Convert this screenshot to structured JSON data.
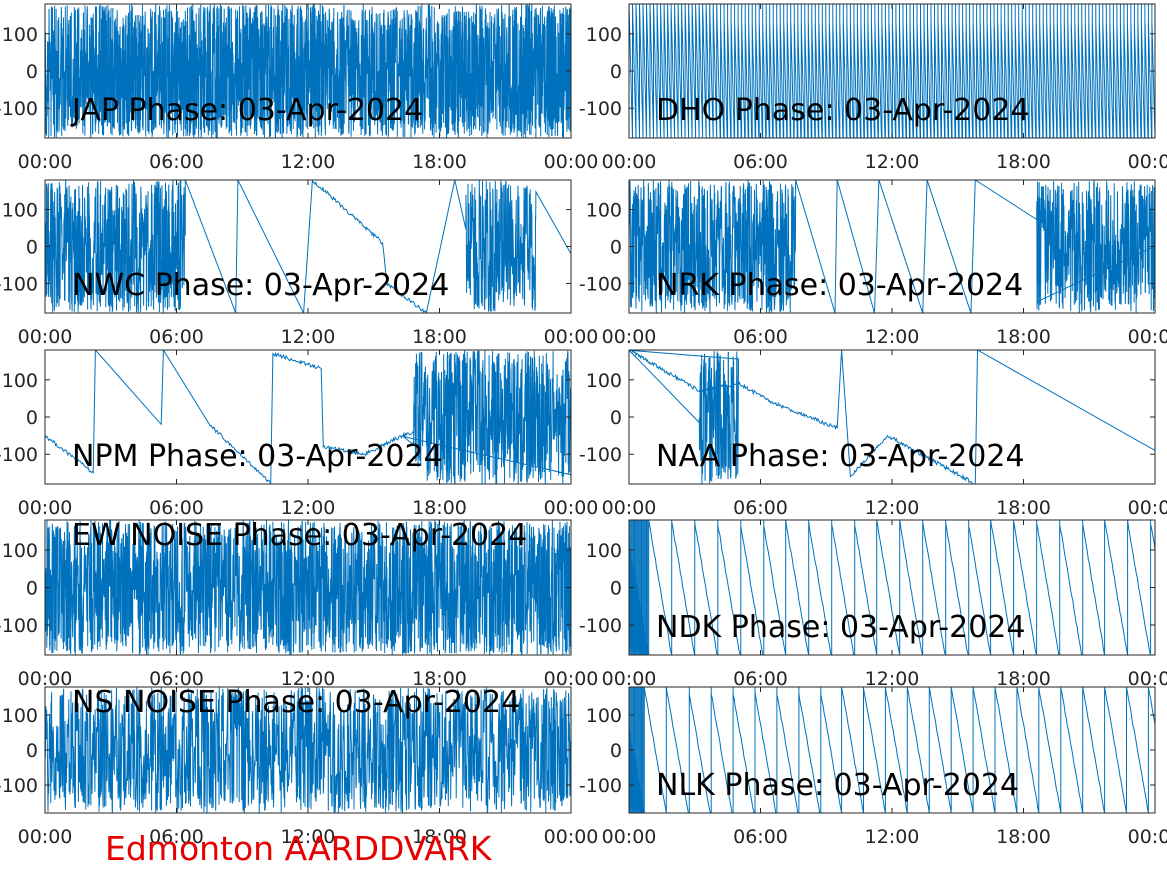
{
  "figure": {
    "footer": "Edmonton AARDDVARK",
    "footer_color": "#e60000",
    "line_color": "#0072bd"
  },
  "chart_data": [
    {
      "type": "line",
      "title": "JAP Phase: 03-Apr-2024",
      "x_ticks": [
        "00:00",
        "06:00",
        "12:00",
        "18:00",
        "00:00"
      ],
      "y_ticks": [
        "100",
        "0",
        "-100"
      ],
      "y_tick_values": [
        100,
        0,
        -100
      ],
      "xlim_hours": [
        0,
        24
      ],
      "ylim": [
        -180,
        180
      ],
      "pattern": "noise",
      "wrap_density": "very-high",
      "series": [
        {
          "x": [
            0,
            24
          ],
          "y": [
            0,
            0
          ]
        }
      ]
    },
    {
      "type": "line",
      "title": "DHO Phase: 03-Apr-2024",
      "x_ticks": [
        "00:00",
        "06:00",
        "12:00",
        "18:00",
        "00:00"
      ],
      "y_ticks": [
        "100",
        "0",
        "-100"
      ],
      "y_tick_values": [
        100,
        0,
        -100
      ],
      "xlim_hours": [
        0,
        24
      ],
      "ylim": [
        -180,
        180
      ],
      "pattern": "fast-sawtooth",
      "wrap_period_hours": 0.16,
      "series": [
        {
          "x": [
            0,
            24
          ],
          "y": [
            0,
            0
          ]
        }
      ]
    },
    {
      "type": "line",
      "title": "NWC Phase: 03-Apr-2024",
      "x_ticks": [
        "00:00",
        "06:00",
        "12:00",
        "18:00",
        "00:00"
      ],
      "y_ticks": [
        "100",
        "0",
        "-100"
      ],
      "y_tick_values": [
        100,
        0,
        -100
      ],
      "xlim_hours": [
        0,
        24
      ],
      "ylim": [
        -180,
        180
      ],
      "pattern": "mixed",
      "noise_ranges_hours": [
        [
          0,
          6.4
        ],
        [
          19.2,
          22.4
        ]
      ],
      "series": [
        {
          "x": [
            6.4,
            8.7,
            8.8,
            11.8,
            12.2,
            15.4,
            15.6,
            17.4,
            18.7,
            24
          ],
          "y": [
            180,
            -180,
            180,
            -180,
            180,
            10,
            -100,
            -180,
            180,
            -20
          ]
        }
      ]
    },
    {
      "type": "line",
      "title": "NRK Phase: 03-Apr-2024",
      "x_ticks": [
        "00:00",
        "06:00",
        "12:00",
        "18:00",
        "00:00"
      ],
      "y_ticks": [
        "100",
        "0",
        "-100"
      ],
      "y_tick_values": [
        100,
        0,
        -100
      ],
      "xlim_hours": [
        0,
        24
      ],
      "ylim": [
        -180,
        180
      ],
      "pattern": "mixed",
      "noise_ranges_hours": [
        [
          0,
          7.6
        ],
        [
          18.6,
          24
        ]
      ],
      "series": [
        {
          "x": [
            7.6,
            9.4,
            9.5,
            11.2,
            11.4,
            13.4,
            13.6,
            15.6,
            15.8,
            18.6
          ],
          "y": [
            180,
            -180,
            180,
            -180,
            180,
            -180,
            180,
            -180,
            180,
            -150
          ]
        }
      ]
    },
    {
      "type": "line",
      "title": "NPM Phase: 03-Apr-2024",
      "x_ticks": [
        "00:00",
        "06:00",
        "12:00",
        "18:00",
        "00:00"
      ],
      "y_ticks": [
        "100",
        "0",
        "-100"
      ],
      "y_tick_values": [
        100,
        0,
        -100
      ],
      "xlim_hours": [
        0,
        24
      ],
      "ylim": [
        -180,
        180
      ],
      "pattern": "mixed",
      "noise_ranges_hours": [
        [
          16.8,
          24
        ]
      ],
      "series": [
        {
          "x": [
            0,
            2.2,
            2.3,
            5.3,
            5.4,
            7.5,
            10.3,
            10.4,
            12.6,
            12.7,
            14.6,
            16.3,
            16.8
          ],
          "y": [
            -50,
            -150,
            180,
            -20,
            180,
            -20,
            -180,
            170,
            130,
            -80,
            -100,
            -50,
            -40
          ]
        }
      ]
    },
    {
      "type": "line",
      "title": "NAA Phase: 03-Apr-2024",
      "x_ticks": [
        "00:00",
        "06:00",
        "12:00",
        "18:00",
        "00:00"
      ],
      "y_ticks": [
        "100",
        "0",
        "-100"
      ],
      "y_tick_values": [
        100,
        0,
        -100
      ],
      "xlim_hours": [
        0,
        24
      ],
      "ylim": [
        -180,
        180
      ],
      "pattern": "mixed",
      "noise_ranges_hours": [
        [
          3.2,
          5.0
        ]
      ],
      "series": [
        {
          "x": [
            0,
            3.2,
            5.0,
            6.5,
            9.5,
            9.7,
            10.1,
            11.8,
            15.8,
            15.9,
            24
          ],
          "y": [
            180,
            70,
            90,
            40,
            -30,
            180,
            -160,
            -50,
            -180,
            180,
            -90
          ]
        }
      ]
    },
    {
      "type": "line",
      "title": "EW NOISE Phase: 03-Apr-2024",
      "x_ticks": [
        "00:00",
        "06:00",
        "12:00",
        "18:00",
        "00:00"
      ],
      "y_ticks": [
        "100",
        "0",
        "-100"
      ],
      "y_tick_values": [
        100,
        0,
        -100
      ],
      "xlim_hours": [
        0,
        24
      ],
      "ylim": [
        -180,
        180
      ],
      "pattern": "noise",
      "wrap_density": "high",
      "series": [
        {
          "x": [
            0,
            24
          ],
          "y": [
            0,
            0
          ]
        }
      ]
    },
    {
      "type": "line",
      "title": "NDK Phase: 03-Apr-2024",
      "x_ticks": [
        "00:00",
        "06:00",
        "12:00",
        "18:00",
        "00:00"
      ],
      "y_ticks": [
        "100",
        "0",
        "-100"
      ],
      "y_tick_values": [
        100,
        0,
        -100
      ],
      "xlim_hours": [
        0,
        24
      ],
      "ylim": [
        -180,
        180
      ],
      "pattern": "sawtooth",
      "wrap_period_hours": 1.04,
      "wrap_start_hours": 0.9,
      "series": [
        {
          "x": [
            0,
            24
          ],
          "y": [
            0,
            0
          ]
        }
      ]
    },
    {
      "type": "line",
      "title": "NS NOISE Phase: 03-Apr-2024",
      "x_ticks": [
        "00:00",
        "06:00",
        "12:00",
        "18:00",
        "00:00"
      ],
      "y_ticks": [
        "100",
        "0",
        "-100"
      ],
      "y_tick_values": [
        100,
        0,
        -100
      ],
      "xlim_hours": [
        0,
        24
      ],
      "ylim": [
        -180,
        180
      ],
      "pattern": "noise",
      "wrap_density": "medium",
      "series": [
        {
          "x": [
            0,
            24
          ],
          "y": [
            0,
            0
          ]
        }
      ]
    },
    {
      "type": "line",
      "title": "NLK Phase: 03-Apr-2024",
      "x_ticks": [
        "00:00",
        "06:00",
        "12:00",
        "18:00",
        "00:00"
      ],
      "y_ticks": [
        "100",
        "0",
        "-100"
      ],
      "y_tick_values": [
        100,
        0,
        -100
      ],
      "xlim_hours": [
        0,
        24
      ],
      "ylim": [
        -180,
        180
      ],
      "pattern": "sawtooth",
      "wrap_period_hours": 1.0,
      "wrap_start_hours": 0.7,
      "series": [
        {
          "x": [
            0,
            24
          ],
          "y": [
            0,
            0
          ]
        }
      ]
    }
  ]
}
